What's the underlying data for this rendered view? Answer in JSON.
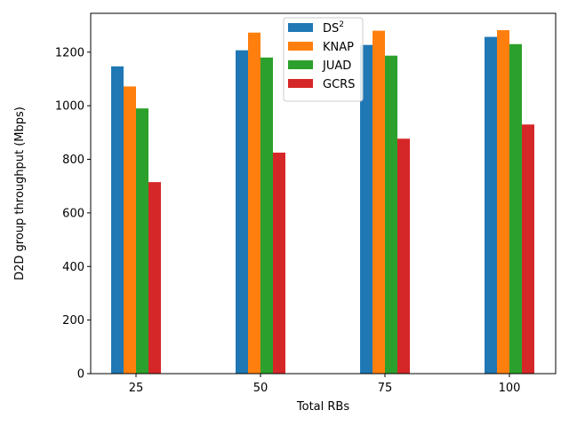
{
  "chart_data": {
    "type": "bar",
    "xlabel": "Total RBs",
    "ylabel": "D2D group throughput (Mbps)",
    "categories": [
      "25",
      "50",
      "75",
      "100"
    ],
    "ylim": [
      0,
      1345
    ],
    "yticks": [
      0,
      200,
      400,
      600,
      800,
      1000,
      1200
    ],
    "legend_position": "top-center",
    "grid": false,
    "series": [
      {
        "name": "DS",
        "name_sup": "2",
        "color": "#1f77b4",
        "values": [
          1147,
          1207,
          1227,
          1257
        ]
      },
      {
        "name": "KNAP",
        "color": "#ff7f0e",
        "values": [
          1072,
          1273,
          1280,
          1282
        ]
      },
      {
        "name": "JUAD",
        "color": "#2ca02c",
        "values": [
          990,
          1180,
          1187,
          1230
        ]
      },
      {
        "name": "GCRS",
        "color": "#d62728",
        "values": [
          715,
          825,
          877,
          930
        ]
      }
    ]
  }
}
